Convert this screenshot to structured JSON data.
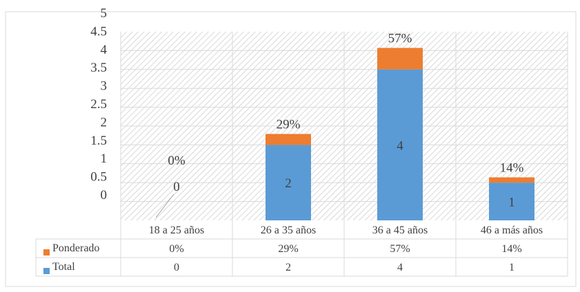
{
  "chart_data": {
    "type": "bar",
    "stacked": true,
    "categories": [
      "18 a 25 años",
      "26 a 35 años",
      "36 a 45 años",
      "46 a más años"
    ],
    "series": [
      {
        "name": "Total",
        "values": [
          0,
          2,
          4,
          1
        ],
        "color": "#5B9BD5",
        "labels": [
          "0",
          "2",
          "4",
          "1"
        ]
      },
      {
        "name": "Ponderado",
        "values": [
          0,
          0.29,
          0.57,
          0.14
        ],
        "color": "#ED7D31",
        "labels": [
          "0%",
          "29%",
          "57%",
          "14%"
        ]
      }
    ],
    "ylim": [
      0,
      5
    ],
    "yticks": [
      "5",
      "4.5",
      "4",
      "3.5",
      "3",
      "2.5",
      "2",
      "1.5",
      "1",
      "0.5",
      "0"
    ],
    "grid": true,
    "data_table": {
      "rows": [
        {
          "name": "Ponderado",
          "color": "#ED7D31",
          "cells": [
            "0%",
            "29%",
            "57%",
            "14%"
          ]
        },
        {
          "name": "Total",
          "color": "#5B9BD5",
          "cells": [
            "0",
            "2",
            "4",
            "1"
          ]
        }
      ]
    }
  }
}
